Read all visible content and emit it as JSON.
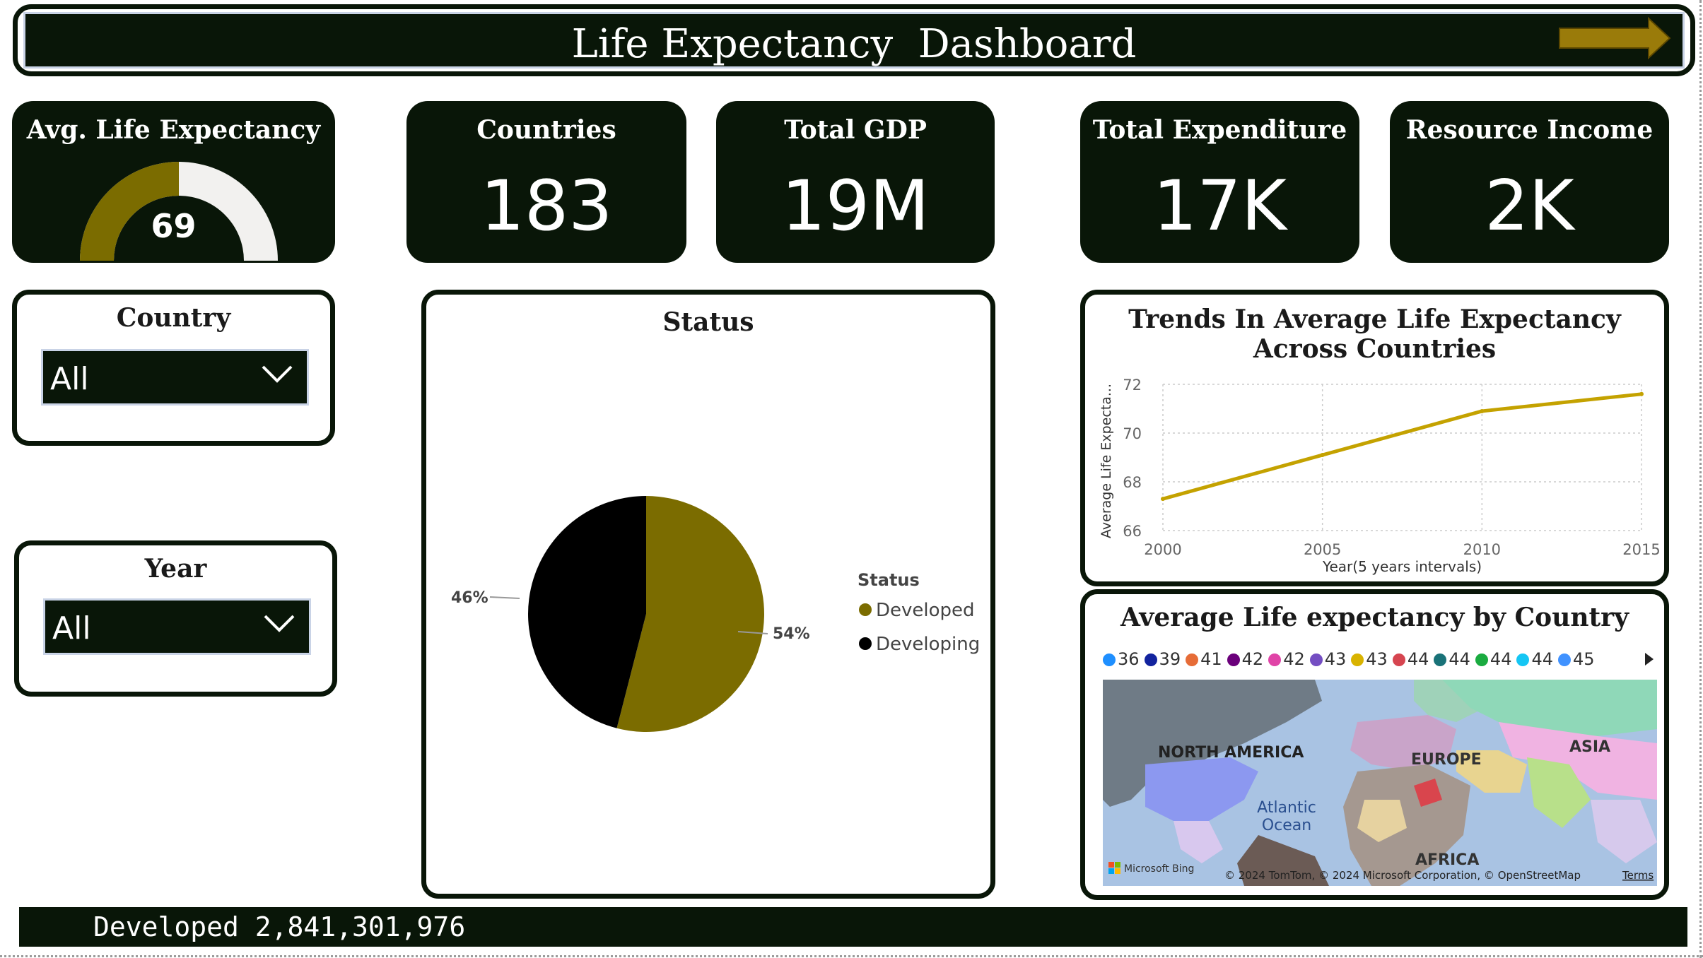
{
  "header": {
    "title": "Life Expectancy  Dashboard",
    "next_icon": "arrow-right-icon"
  },
  "kpis": {
    "avg_life": {
      "title": "Avg. Life Expectancy",
      "value": "69",
      "gauge_fraction": 0.5
    },
    "countries": {
      "title": "Countries",
      "value": "183"
    },
    "gdp": {
      "title": "Total GDP",
      "value": "19M"
    },
    "expenditure": {
      "title": "Total Expenditure",
      "value": "17K"
    },
    "resource": {
      "title": "Resource Income",
      "value": "2K"
    }
  },
  "slicers": {
    "country": {
      "title": "Country",
      "value": "All"
    },
    "year": {
      "title": "Year",
      "value": "All"
    }
  },
  "status_chart": {
    "title": "Status",
    "legend_title": "Status",
    "chart_data": {
      "type": "pie",
      "categories": [
        "Developed",
        "Developing"
      ],
      "values": [
        54,
        46
      ],
      "colors": [
        "#7b6c00",
        "#000000"
      ],
      "labels": [
        "54%",
        "46%"
      ],
      "legend": "right"
    }
  },
  "trend_chart": {
    "title_line1": "Trends In Average Life Expectancy",
    "title_line2": "Across Countries",
    "chart_data": {
      "type": "line",
      "x": [
        2000,
        2005,
        2010,
        2015
      ],
      "y": [
        67.3,
        69.1,
        70.9,
        71.6
      ],
      "xlabel": "Year(5 years intervals)",
      "ylabel": "Average Life Expecta...",
      "xticks": [
        "2000",
        "2005",
        "2010",
        "2015"
      ],
      "yticks": [
        "66",
        "68",
        "70",
        "72"
      ],
      "ylim": [
        66,
        72
      ],
      "color": "#c4a200",
      "grid": true
    }
  },
  "map": {
    "title": "Average Life expectancy by Country",
    "legend": [
      {
        "label": "36",
        "color": "#1f8fff"
      },
      {
        "label": "39",
        "color": "#12239e"
      },
      {
        "label": "41",
        "color": "#e66c37"
      },
      {
        "label": "42",
        "color": "#6b007b"
      },
      {
        "label": "42",
        "color": "#e044a7"
      },
      {
        "label": "43",
        "color": "#744ec2"
      },
      {
        "label": "43",
        "color": "#d9b300"
      },
      {
        "label": "44",
        "color": "#d64550"
      },
      {
        "label": "44",
        "color": "#197278"
      },
      {
        "label": "44",
        "color": "#1aab40"
      },
      {
        "label": "44",
        "color": "#15c6f4"
      },
      {
        "label": "45",
        "color": "#4092ff"
      }
    ],
    "regions": {
      "north_america": "NORTH AMERICA",
      "europe": "EUROPE",
      "asia": "ASIA",
      "ocean_line1": "Atlantic",
      "ocean_line2": "Ocean",
      "africa": "AFRICA"
    },
    "bing": "Microsoft Bing",
    "attribution": "© 2024 TomTom, © 2024 Microsoft Corporation, © OpenStreetMap",
    "terms": "Terms"
  },
  "footer": {
    "text": "Developed 2,841,301,976"
  }
}
